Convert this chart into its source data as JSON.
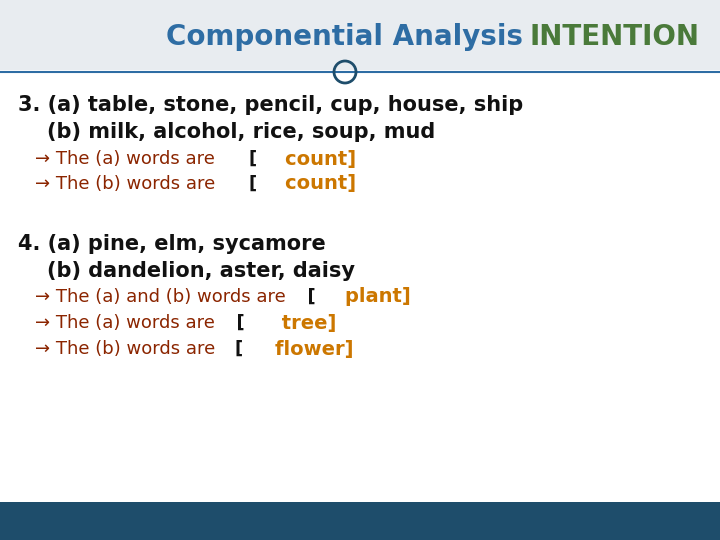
{
  "title": "Componential Analysis",
  "title_color": "#2E6DA4",
  "intention_text": "INTENTION",
  "intention_color": "#4a7a3a",
  "bg_color": "#ffffff",
  "content_bg": "#ffffff",
  "footer_color": "#1e4d6b",
  "line3_a": "3. (a) table, stone, pencil, cup, house, ship",
  "line3_b": "    (b) milk, alcohol, rice, soup, mud",
  "arrow3_1_black": "→ The (a) words are",
  "arrow3_1_bracket": "[",
  "arrow3_1_orange": "    count]",
  "arrow3_2_black": "→ The (b) words are",
  "arrow3_2_bracket": "[",
  "arrow3_2_orange": "    count]",
  "line4_a": "4. (a) pine, elm, sycamore",
  "line4_b": "    (b) dandelion, aster, daisy",
  "arrow4_1_black": "→ The (a) and (b) words are",
  "arrow4_1_bracket": "  [",
  "arrow4_1_orange": "    plant]",
  "arrow4_2_black": "→ The (a) words are",
  "arrow4_2_bracket": "  [",
  "arrow4_2_orange": "     tree]",
  "arrow4_3_black": "→ The (b) words are",
  "arrow4_3_bracket": "[",
  "arrow4_3_orange": "    flower]",
  "arrow_color": "#8B2500",
  "orange_color": "#CC7700",
  "black_color": "#111111",
  "circle_color": "#1e4d6b",
  "divider_color": "#2E6DA4"
}
